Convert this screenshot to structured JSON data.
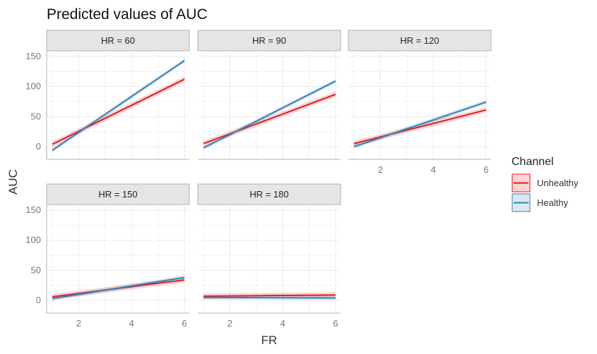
{
  "chart_data": {
    "type": "line",
    "title": "Predicted values of AUC",
    "xlabel": "FR",
    "ylabel": "AUC",
    "x_ticks": [
      2,
      4,
      6
    ],
    "y_ticks": [
      0,
      50,
      100,
      150
    ],
    "xlim": [
      0.8,
      6.2
    ],
    "ylim": [
      -20,
      160
    ],
    "grid": true,
    "legend": {
      "title": "Channel",
      "position": "right",
      "entries": [
        {
          "name": "Unhealthy",
          "color": "#e41a1c"
        },
        {
          "name": "Healthy",
          "color": "#377eb8"
        }
      ]
    },
    "facets": [
      {
        "label": "HR = 60",
        "series": [
          {
            "name": "Unhealthy",
            "x": [
              1,
              6
            ],
            "y": [
              4,
              112
            ]
          },
          {
            "name": "Healthy",
            "x": [
              1,
              6
            ],
            "y": [
              -6,
              143
            ]
          }
        ]
      },
      {
        "label": "HR = 90",
        "series": [
          {
            "name": "Unhealthy",
            "x": [
              1,
              6
            ],
            "y": [
              5,
              87
            ]
          },
          {
            "name": "Healthy",
            "x": [
              1,
              6
            ],
            "y": [
              -2,
              109
            ]
          }
        ]
      },
      {
        "label": "HR = 120",
        "series": [
          {
            "name": "Unhealthy",
            "x": [
              1,
              6
            ],
            "y": [
              5,
              61
            ]
          },
          {
            "name": "Healthy",
            "x": [
              1,
              6
            ],
            "y": [
              0,
              74
            ]
          }
        ]
      },
      {
        "label": "HR = 150",
        "series": [
          {
            "name": "Unhealthy",
            "x": [
              1,
              6
            ],
            "y": [
              6,
              34
            ]
          },
          {
            "name": "Healthy",
            "x": [
              1,
              6
            ],
            "y": [
              3,
              38
            ]
          }
        ]
      },
      {
        "label": "HR = 180",
        "series": [
          {
            "name": "Unhealthy",
            "x": [
              1,
              6
            ],
            "y": [
              7,
              9
            ]
          },
          {
            "name": "Healthy",
            "x": [
              1,
              6
            ],
            "y": [
              5,
              4
            ]
          }
        ]
      }
    ]
  }
}
